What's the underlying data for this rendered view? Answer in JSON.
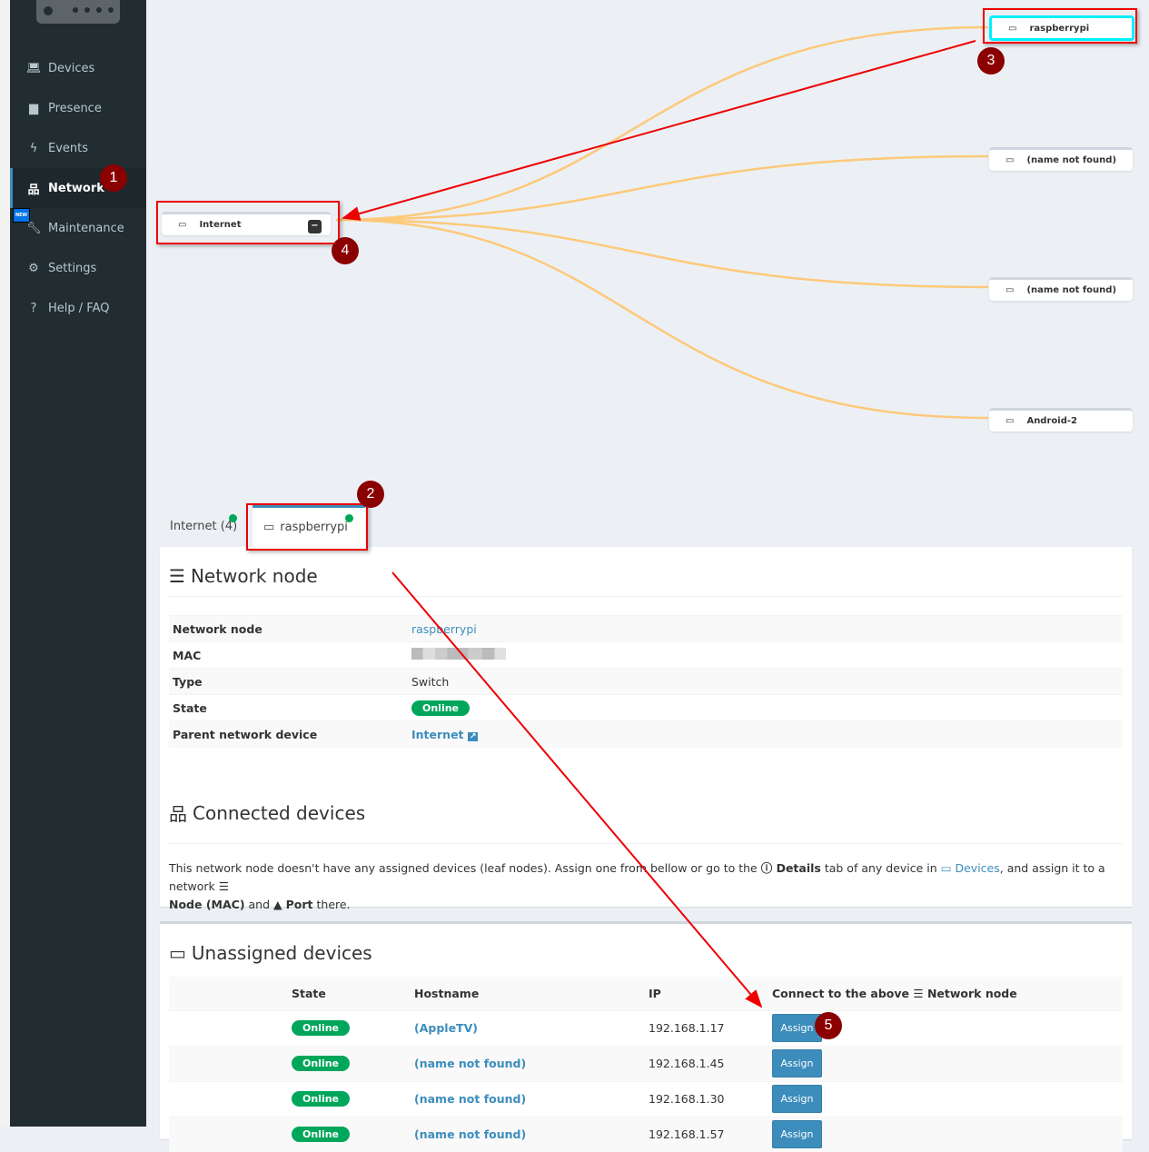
{
  "sidebar": {
    "items": [
      {
        "label": "Devices",
        "icon": "laptop-icon"
      },
      {
        "label": "Presence",
        "icon": "calendar-icon"
      },
      {
        "label": "Events",
        "icon": "bolt-icon"
      },
      {
        "label": "Network",
        "icon": "sitemap-icon",
        "active": true
      },
      {
        "label": "Maintenance",
        "icon": "wrench-icon",
        "badge": "NEW"
      },
      {
        "label": "Settings",
        "icon": "gear-icon"
      },
      {
        "label": "Help / FAQ",
        "icon": "question-icon"
      }
    ]
  },
  "graph": {
    "root": "Internet",
    "nodes": [
      "raspberrypi",
      "(name not found)",
      "(name not found)",
      "Android-2"
    ],
    "link_color": "#fdc97a"
  },
  "annotations": [
    "1",
    "2",
    "3",
    "4",
    "5"
  ],
  "tabs": [
    {
      "label": "Internet (4)"
    },
    {
      "label": "raspberrypi",
      "active": true
    }
  ],
  "node": {
    "title": "Network node",
    "rows": [
      {
        "k": "Network node",
        "v": "raspberrypi"
      },
      {
        "k": "MAC",
        "v": ""
      },
      {
        "k": "Type",
        "v": "Switch"
      },
      {
        "k": "State",
        "v": "Online"
      },
      {
        "k": "Parent network device",
        "v": "Internet"
      }
    ]
  },
  "connected": {
    "title": "Connected devices",
    "d1": "This network node doesn't have any assigned devices (leaf nodes). Assign one from bellow or go to the ",
    "details": "Details",
    "d2": " tab of any device in ",
    "devices": "Devices",
    "d3": ", and assign it to a network ",
    "node_mac": "Node (MAC)",
    "d4": " and ",
    "port": "Port",
    "d5": " there."
  },
  "unassigned": {
    "title": "Unassigned devices",
    "headers": [
      "State",
      "Hostname",
      "IP",
      "Connect to the above",
      "Network node"
    ],
    "rows": [
      {
        "state": "Online",
        "host": "(AppleTV)",
        "ip": "192.168.1.17",
        "action": "Assign"
      },
      {
        "state": "Online",
        "host": "(name not found)",
        "ip": "192.168.1.45",
        "action": "Assign"
      },
      {
        "state": "Online",
        "host": "(name not found)",
        "ip": "192.168.1.30",
        "action": "Assign"
      },
      {
        "state": "Online",
        "host": "(name not found)",
        "ip": "192.168.1.57",
        "action": "Assign"
      }
    ]
  }
}
